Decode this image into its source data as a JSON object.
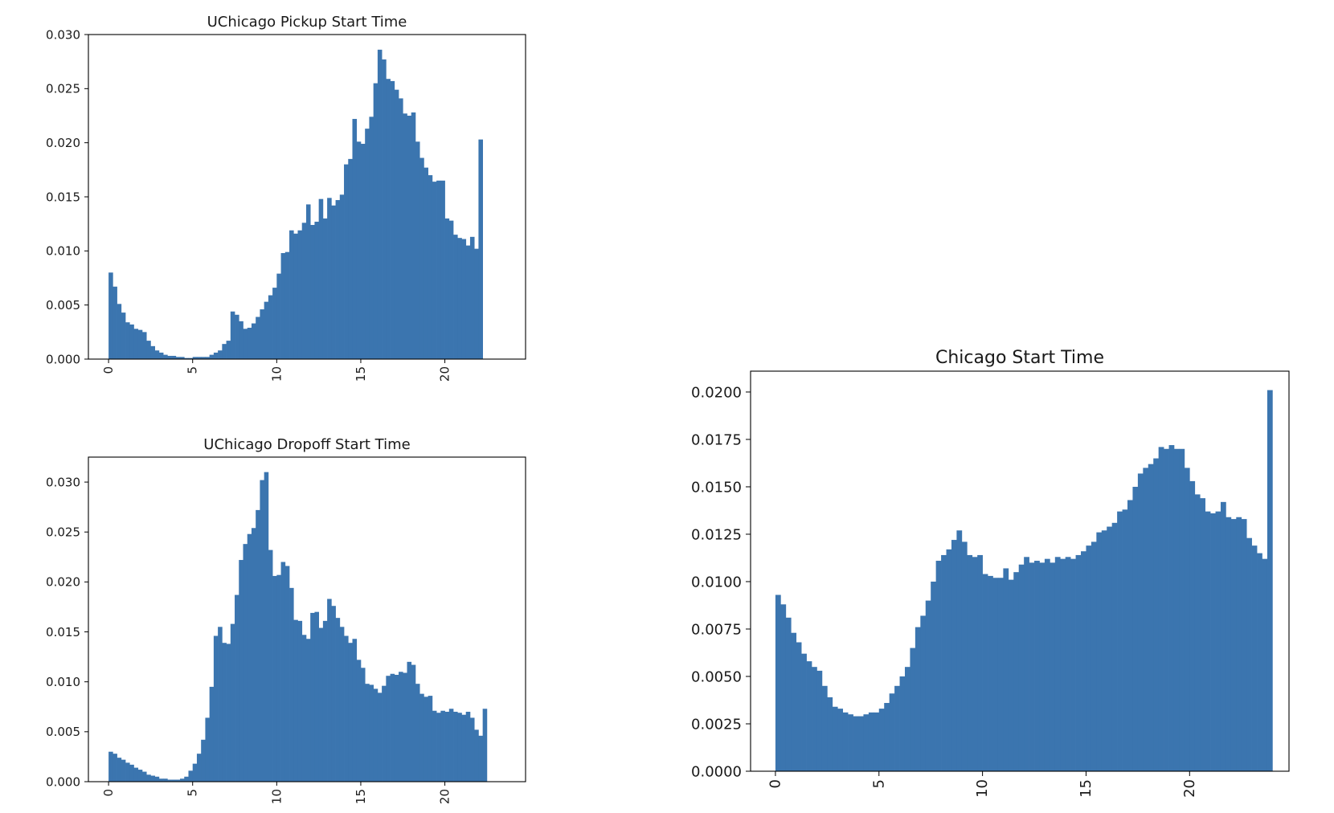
{
  "chart_data": [
    {
      "type": "bar",
      "title": "UChicago Pickup Start Time",
      "xlabel": "",
      "ylabel": "",
      "xlim": [
        -1.2,
        24.8
      ],
      "ylim": [
        0,
        0.03
      ],
      "xticks": [
        0,
        5,
        10,
        15,
        20
      ],
      "xtick_labels": [
        "0",
        "5",
        "10",
        "15",
        "20"
      ],
      "yticks": [
        0,
        0.005,
        0.01,
        0.015,
        0.02,
        0.025,
        0.03
      ],
      "ytick_labels": [
        "0.000",
        "0.005",
        "0.010",
        "0.015",
        "0.020",
        "0.025",
        "0.030"
      ],
      "bin_start": 0,
      "bin_width": 0.25,
      "bar_color": "#3b75af",
      "grid": false,
      "values": [
        0.008,
        0.0067,
        0.0051,
        0.0043,
        0.0034,
        0.0032,
        0.0028,
        0.0027,
        0.0025,
        0.0017,
        0.0012,
        0.0008,
        0.0006,
        0.0004,
        0.0003,
        0.0003,
        0.0002,
        0.0002,
        0.0001,
        0.0001,
        0.0002,
        0.0002,
        0.0002,
        0.0002,
        0.0004,
        0.0006,
        0.0008,
        0.0014,
        0.0017,
        0.0044,
        0.0041,
        0.0035,
        0.0028,
        0.0029,
        0.0033,
        0.0039,
        0.0046,
        0.0053,
        0.0059,
        0.0066,
        0.0079,
        0.0098,
        0.0099,
        0.0119,
        0.0116,
        0.0119,
        0.0126,
        0.0143,
        0.0124,
        0.0127,
        0.0148,
        0.013,
        0.0149,
        0.0142,
        0.0147,
        0.0152,
        0.018,
        0.0185,
        0.0222,
        0.0201,
        0.0199,
        0.0213,
        0.0224,
        0.0255,
        0.0286,
        0.0277,
        0.0259,
        0.0257,
        0.0249,
        0.0241,
        0.0227,
        0.0225,
        0.0228,
        0.0201,
        0.0186,
        0.0177,
        0.017,
        0.0164,
        0.0165,
        0.0165,
        0.013,
        0.0128,
        0.0115,
        0.0112,
        0.0111,
        0.0105,
        0.0113,
        0.0102,
        0.0203
      ]
    },
    {
      "type": "bar",
      "title": "UChicago Dropoff Start Time",
      "xlabel": "",
      "ylabel": "",
      "xlim": [
        -1.2,
        24.8
      ],
      "ylim": [
        0,
        0.0325
      ],
      "xticks": [
        0,
        5,
        10,
        15,
        20
      ],
      "xtick_labels": [
        "0",
        "5",
        "10",
        "15",
        "20"
      ],
      "yticks": [
        0,
        0.005,
        0.01,
        0.015,
        0.02,
        0.025,
        0.03
      ],
      "ytick_labels": [
        "0.000",
        "0.005",
        "0.010",
        "0.015",
        "0.020",
        "0.025",
        "0.030"
      ],
      "bin_start": 0,
      "bin_width": 0.25,
      "bar_color": "#3b75af",
      "grid": false,
      "values": [
        0.003,
        0.0028,
        0.0024,
        0.0022,
        0.0019,
        0.0017,
        0.0014,
        0.0012,
        0.001,
        0.0007,
        0.0006,
        0.0005,
        0.0003,
        0.0003,
        0.0002,
        0.0002,
        0.0002,
        0.0003,
        0.0005,
        0.0011,
        0.0018,
        0.0028,
        0.0042,
        0.0064,
        0.0095,
        0.0146,
        0.0155,
        0.0139,
        0.0138,
        0.0158,
        0.0187,
        0.0222,
        0.0238,
        0.0248,
        0.0254,
        0.0272,
        0.0302,
        0.031,
        0.0232,
        0.0206,
        0.0207,
        0.022,
        0.0216,
        0.0194,
        0.0162,
        0.0161,
        0.0147,
        0.0143,
        0.0169,
        0.017,
        0.0154,
        0.0161,
        0.0183,
        0.0176,
        0.0164,
        0.0155,
        0.0146,
        0.0139,
        0.0143,
        0.0122,
        0.0114,
        0.0098,
        0.0097,
        0.0093,
        0.0089,
        0.0096,
        0.0106,
        0.0108,
        0.0107,
        0.011,
        0.0109,
        0.012,
        0.0117,
        0.0098,
        0.0088,
        0.0085,
        0.0086,
        0.0071,
        0.0069,
        0.0071,
        0.007,
        0.0073,
        0.007,
        0.0069,
        0.0067,
        0.007,
        0.0064,
        0.0052,
        0.0046,
        0.0073
      ]
    },
    {
      "type": "bar",
      "title": "Chicago Start Time",
      "xlabel": "",
      "ylabel": "",
      "xlim": [
        -1.2,
        24.8
      ],
      "ylim": [
        0,
        0.0211
      ],
      "xticks": [
        0,
        5,
        10,
        15,
        20
      ],
      "xtick_labels": [
        "0",
        "5",
        "10",
        "15",
        "20"
      ],
      "yticks": [
        0,
        0.0025,
        0.005,
        0.0075,
        0.01,
        0.0125,
        0.015,
        0.0175,
        0.02
      ],
      "ytick_labels": [
        "0.0000",
        "0.0025",
        "0.0050",
        "0.0075",
        "0.0100",
        "0.0125",
        "0.0150",
        "0.0175",
        "0.0200"
      ],
      "bin_start": 0,
      "bin_width": 0.25,
      "bar_color": "#3b75af",
      "grid": false,
      "values": [
        0.0093,
        0.0088,
        0.0081,
        0.0073,
        0.0068,
        0.0062,
        0.0058,
        0.0055,
        0.0053,
        0.0045,
        0.0039,
        0.0034,
        0.0033,
        0.0031,
        0.003,
        0.0029,
        0.0029,
        0.003,
        0.0031,
        0.0031,
        0.0033,
        0.0036,
        0.0041,
        0.0045,
        0.005,
        0.0055,
        0.0065,
        0.0076,
        0.0082,
        0.009,
        0.01,
        0.0111,
        0.0114,
        0.0117,
        0.0122,
        0.0127,
        0.0121,
        0.0114,
        0.0113,
        0.0114,
        0.0104,
        0.0103,
        0.0102,
        0.0102,
        0.0107,
        0.0101,
        0.0105,
        0.0109,
        0.0113,
        0.011,
        0.0111,
        0.011,
        0.0112,
        0.011,
        0.0113,
        0.0112,
        0.0113,
        0.0112,
        0.0114,
        0.0116,
        0.0119,
        0.0121,
        0.0126,
        0.0127,
        0.0129,
        0.0131,
        0.0137,
        0.0138,
        0.0143,
        0.015,
        0.0157,
        0.016,
        0.0162,
        0.0165,
        0.0171,
        0.017,
        0.0172,
        0.017,
        0.017,
        0.016,
        0.0153,
        0.0146,
        0.0144,
        0.0137,
        0.0136,
        0.0137,
        0.0142,
        0.0134,
        0.0133,
        0.0134,
        0.0133,
        0.0123,
        0.0119,
        0.0115,
        0.0112,
        0.0201
      ]
    }
  ]
}
